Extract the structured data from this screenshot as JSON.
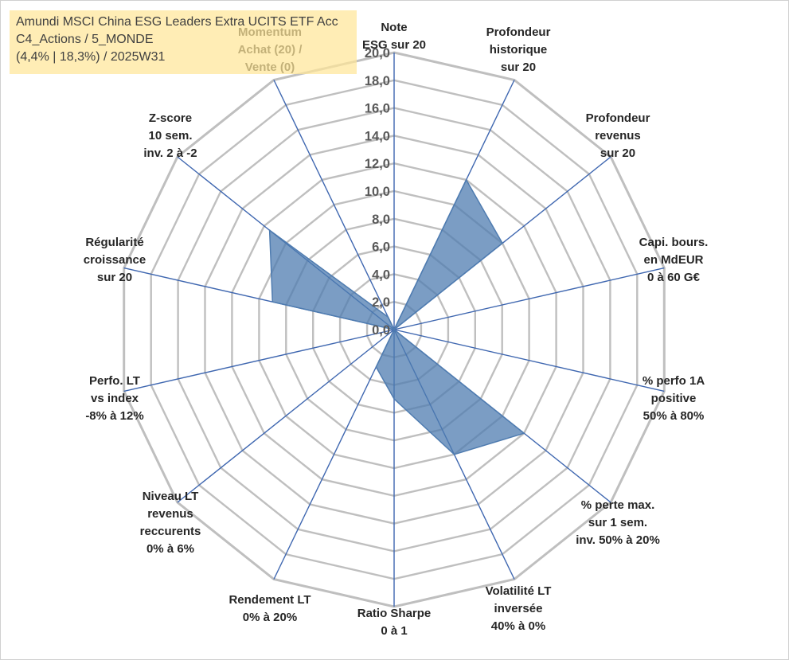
{
  "chart_data": {
    "type": "radar",
    "title": "Amundi MSCI China ESG Leaders Extra UCITS ETF Acc",
    "subtitle_lines": [
      "C4_Actions / 5_MONDE",
      "(4,4% | 18,3%) / 2025W31"
    ],
    "rmin": 0,
    "rmax": 20,
    "tick_step": 2,
    "ticks": [
      "0,0",
      "2,0",
      "4,0",
      "6,0",
      "8,0",
      "10,0",
      "12,0",
      "14,0",
      "16,0",
      "18,0",
      "20,0"
    ],
    "axes": [
      {
        "label_lines": [
          "Note",
          "ESG sur 20"
        ]
      },
      {
        "label_lines": [
          "Profondeur",
          "historique",
          "sur 20"
        ]
      },
      {
        "label_lines": [
          "Profondeur",
          "revenus",
          "sur 20"
        ]
      },
      {
        "label_lines": [
          "Capi. bours.",
          "en MdEUR",
          "0 à 60 G€"
        ]
      },
      {
        "label_lines": [
          "% perfo 1A",
          "positive",
          "50% à 80%"
        ]
      },
      {
        "label_lines": [
          "% perte max.",
          "sur 1 sem.",
          "inv. 50% à 20%"
        ]
      },
      {
        "label_lines": [
          "Volatilité LT",
          "inversée",
          "40% à 0%"
        ]
      },
      {
        "label_lines": [
          "Ratio Sharpe",
          "0 à 1"
        ]
      },
      {
        "label_lines": [
          "Rendement LT",
          "0% à 20%"
        ]
      },
      {
        "label_lines": [
          "Niveau LT",
          "revenus",
          "reccurents",
          "0% à 6%"
        ]
      },
      {
        "label_lines": [
          "Perfo. LT",
          "vs index",
          "-8% à 12%"
        ]
      },
      {
        "label_lines": [
          "Régularité",
          "croissance",
          "sur 20"
        ]
      },
      {
        "label_lines": [
          "Z-score",
          "10 sem.",
          "inv. 2 à -2"
        ]
      },
      {
        "label_lines": [
          "Momentum",
          "Achat (20) /",
          "Vente (0)"
        ]
      }
    ],
    "series": [
      {
        "values": [
          0,
          12,
          10,
          0,
          0,
          12,
          10,
          5,
          3,
          0,
          0,
          9,
          11.5,
          1
        ],
        "color": "#4f7cb0"
      }
    ],
    "colors": {
      "grid": "#bfbfbf",
      "spoke": "#3f67b0",
      "fill": "#4f7cb0",
      "fill_opacity": 0.75
    }
  }
}
